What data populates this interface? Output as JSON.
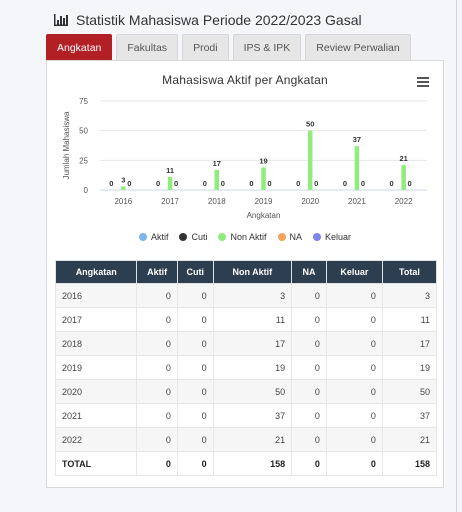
{
  "header": {
    "title": "Statistik Mahasiswa Periode 2022/2023 Gasal"
  },
  "tabs": [
    "Angkatan",
    "Fakultas",
    "Prodi",
    "IPS & IPK",
    "Review Perwalian"
  ],
  "colors": {
    "accent": "#b21f24",
    "table_header": "#2c3e50"
  },
  "chart_data": {
    "type": "bar",
    "title": "Mahasiswa Aktif per Angkatan",
    "xlabel": "Angkatan",
    "ylabel": "Jumlah Mahasiswa",
    "ylim": [
      0,
      75
    ],
    "yticks": [
      0,
      25,
      50,
      75
    ],
    "categories": [
      "2016",
      "2017",
      "2018",
      "2019",
      "2020",
      "2021",
      "2022"
    ],
    "series": [
      {
        "name": "Aktif",
        "color": "#7cb5ec",
        "values": [
          0,
          0,
          0,
          0,
          0,
          0,
          0
        ]
      },
      {
        "name": "Cuti",
        "color": "#333333",
        "values": [
          0,
          0,
          0,
          0,
          0,
          0,
          0
        ]
      },
      {
        "name": "Non Aktif",
        "color": "#90ed7d",
        "values": [
          3,
          11,
          17,
          19,
          50,
          37,
          21
        ]
      },
      {
        "name": "NA",
        "color": "#f7a35c",
        "values": [
          0,
          0,
          0,
          0,
          0,
          0,
          0
        ]
      },
      {
        "name": "Keluar",
        "color": "#8085e9",
        "values": [
          0,
          0,
          0,
          0,
          0,
          0,
          0
        ]
      }
    ],
    "data_labels": [
      [
        "0",
        "3",
        "0"
      ],
      [
        "0",
        "11",
        "0"
      ],
      [
        "0",
        "17",
        "0"
      ],
      [
        "0",
        "19",
        "0"
      ],
      [
        "0",
        "50",
        "0"
      ],
      [
        "0",
        "37",
        "0"
      ],
      [
        "0",
        "21",
        "0"
      ]
    ],
    "grid": true,
    "legend_position": "bottom"
  },
  "table": {
    "headers": [
      "Angkatan",
      "Aktif",
      "Cuti",
      "Non Aktif",
      "NA",
      "Keluar",
      "Total"
    ],
    "rows": [
      [
        "2016",
        "0",
        "0",
        "3",
        "0",
        "0",
        "3"
      ],
      [
        "2017",
        "0",
        "0",
        "11",
        "0",
        "0",
        "11"
      ],
      [
        "2018",
        "0",
        "0",
        "17",
        "0",
        "0",
        "17"
      ],
      [
        "2019",
        "0",
        "0",
        "19",
        "0",
        "0",
        "19"
      ],
      [
        "2020",
        "0",
        "0",
        "50",
        "0",
        "0",
        "50"
      ],
      [
        "2021",
        "0",
        "0",
        "37",
        "0",
        "0",
        "37"
      ],
      [
        "2022",
        "0",
        "0",
        "21",
        "0",
        "0",
        "21"
      ]
    ],
    "total": [
      "TOTAL",
      "0",
      "0",
      "158",
      "0",
      "0",
      "158"
    ]
  }
}
